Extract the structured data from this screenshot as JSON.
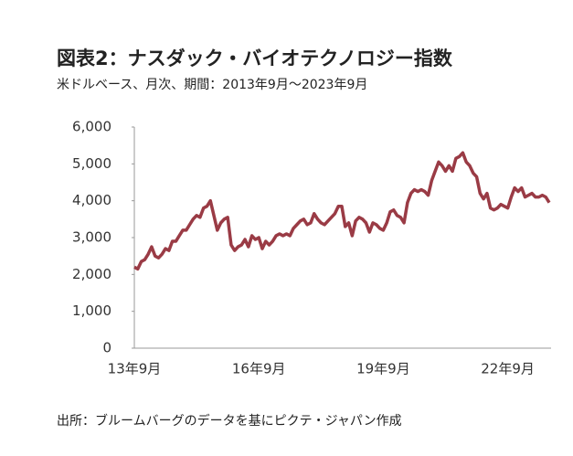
{
  "chart_data": {
    "type": "line",
    "title": "図表2：ナスダック・バイオテクノロジー指数",
    "subtitle": "米ドルベース、月次、期間：2013年9月～2023年9月",
    "source": "出所：ブルームバーグのデータを基にピクテ・ジャパン作成",
    "color": "#9a3b45",
    "categories": [
      "13年9月",
      null,
      null,
      null,
      null,
      null,
      null,
      null,
      null,
      null,
      null,
      null,
      null,
      null,
      null,
      null,
      null,
      null,
      null,
      null,
      null,
      null,
      null,
      null,
      null,
      null,
      null,
      null,
      null,
      null,
      null,
      null,
      null,
      null,
      null,
      null,
      "16年9月",
      null,
      null,
      null,
      null,
      null,
      null,
      null,
      null,
      null,
      null,
      null,
      null,
      null,
      null,
      null,
      null,
      null,
      null,
      null,
      null,
      null,
      null,
      null,
      null,
      null,
      null,
      null,
      null,
      null,
      null,
      null,
      null,
      null,
      null,
      null,
      "19年9月",
      null,
      null,
      null,
      null,
      null,
      null,
      null,
      null,
      null,
      null,
      null,
      null,
      null,
      null,
      null,
      null,
      null,
      null,
      null,
      null,
      null,
      null,
      null,
      null,
      null,
      null,
      null,
      null,
      null,
      null,
      null,
      null,
      null,
      null,
      null,
      "22年9月",
      null,
      null,
      null,
      null,
      null,
      null,
      null,
      null,
      null,
      null,
      null,
      null
    ],
    "values": [
      2200,
      2150,
      2350,
      2400,
      2550,
      2750,
      2500,
      2450,
      2550,
      2700,
      2650,
      2900,
      2900,
      3050,
      3200,
      3200,
      3350,
      3500,
      3600,
      3550,
      3800,
      3850,
      4000,
      3600,
      3200,
      3400,
      3500,
      3550,
      2800,
      2650,
      2750,
      2800,
      2950,
      2750,
      3050,
      2950,
      3000,
      2700,
      2900,
      2800,
      2900,
      3050,
      3100,
      3050,
      3100,
      3050,
      3250,
      3350,
      3450,
      3500,
      3350,
      3400,
      3650,
      3500,
      3400,
      3350,
      3450,
      3550,
      3650,
      3850,
      3850,
      3300,
      3400,
      3050,
      3450,
      3550,
      3500,
      3400,
      3150,
      3400,
      3350,
      3250,
      3200,
      3400,
      3700,
      3750,
      3600,
      3550,
      3400,
      3950,
      4200,
      4300,
      4250,
      4300,
      4250,
      4150,
      4550,
      4800,
      5050,
      4950,
      4800,
      4950,
      4800,
      5150,
      5200,
      5300,
      5050,
      4950,
      4750,
      4650,
      4200,
      4050,
      4200,
      3800,
      3750,
      3800,
      3900,
      3850,
      3800,
      4100,
      4350,
      4250,
      4350,
      4100,
      4150,
      4200,
      4100,
      4100,
      4150,
      4100,
      3950
    ],
    "ylim": [
      0,
      6000
    ],
    "yticks": [
      0,
      {
        "value": 1000,
        "label": "1,000"
      },
      {
        "value": 2000,
        "label": "2,000"
      },
      {
        "value": 3000,
        "label": "3,000"
      },
      {
        "value": 4000,
        "label": "4,000"
      },
      {
        "value": 5000,
        "label": "5,000"
      },
      {
        "value": 6000,
        "label": "6,000"
      }
    ]
  }
}
